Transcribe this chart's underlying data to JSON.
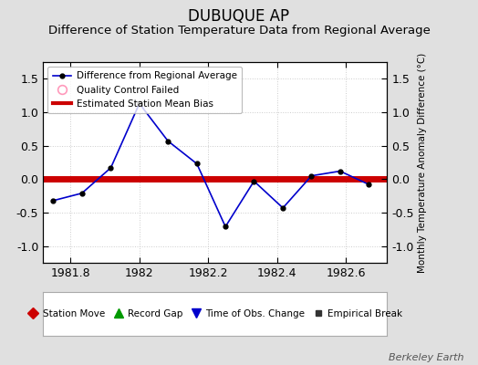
{
  "title": "DUBUQUE AP",
  "subtitle": "Difference of Station Temperature Data from Regional Average",
  "ylabel_right": "Monthly Temperature Anomaly Difference (°C)",
  "watermark": "Berkeley Earth",
  "x_values": [
    1981.75,
    1981.833,
    1981.917,
    1982.0,
    1982.083,
    1982.167,
    1982.25,
    1982.333,
    1982.417,
    1982.5,
    1982.583,
    1982.667
  ],
  "y_values": [
    -0.32,
    -0.21,
    0.17,
    1.13,
    0.57,
    0.23,
    -0.71,
    -0.03,
    -0.43,
    0.05,
    0.12,
    -0.08
  ],
  "bias_line_y": 0.0,
  "xlim": [
    1981.72,
    1982.72
  ],
  "ylim": [
    -1.25,
    1.75
  ],
  "line_color": "#0000cc",
  "marker_color": "#000000",
  "bias_color": "#cc0000",
  "background_color": "#e0e0e0",
  "plot_background_color": "#ffffff",
  "grid_color": "#cccccc",
  "xticks": [
    1981.8,
    1982.0,
    1982.2,
    1982.4,
    1982.6
  ],
  "xtick_labels": [
    "1981.8",
    "1982",
    "1982.2",
    "1982.4",
    "1982.6"
  ],
  "yticks": [
    -1.0,
    -0.5,
    0.0,
    0.5,
    1.0,
    1.5
  ],
  "title_fontsize": 12,
  "subtitle_fontsize": 9.5
}
